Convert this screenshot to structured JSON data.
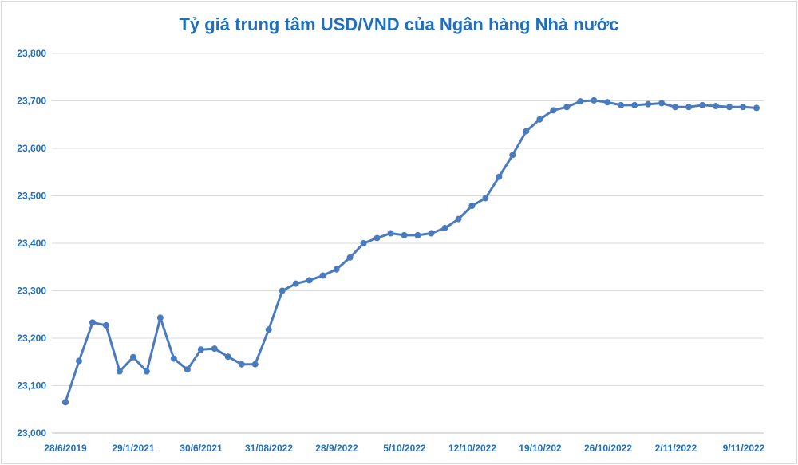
{
  "chart_data": {
    "type": "line",
    "title": "Tỷ giá trung tâm USD/VND của Ngân hàng Nhà nước",
    "xlabel": "",
    "ylabel": "",
    "ylim": [
      23000,
      23800
    ],
    "y_ticks": [
      "23,000",
      "23,100",
      "23,200",
      "23,300",
      "23,400",
      "23,500",
      "23,600",
      "23,700",
      "23,800"
    ],
    "x_tick_labels": [
      "28/6/2019",
      "29/1/2021",
      "30/6/2021",
      "31/08/2022",
      "28/9/2022",
      "5/10/2022",
      "12/10/2022",
      "19/10/202",
      "26/10/2022",
      "2/11/2022",
      "9/11/2022"
    ],
    "grid": true,
    "legend": "none",
    "color": "#4a7bbf",
    "series": [
      {
        "values": [
          23065,
          23152,
          23233,
          23227,
          23130,
          23160,
          23130,
          23243,
          23157,
          23134,
          23176,
          23178,
          23161,
          23145,
          23145,
          23218,
          23300,
          23315,
          23322,
          23332,
          23345,
          23370,
          23400,
          23411,
          23421,
          23417,
          23417,
          23421,
          23432,
          23451,
          23479,
          23495,
          23540,
          23586,
          23636,
          23661,
          23680,
          23687,
          23699,
          23701,
          23697,
          23691,
          23691,
          23693,
          23695,
          23687,
          23687,
          23691,
          23689,
          23687,
          23687,
          23685
        ]
      }
    ]
  }
}
